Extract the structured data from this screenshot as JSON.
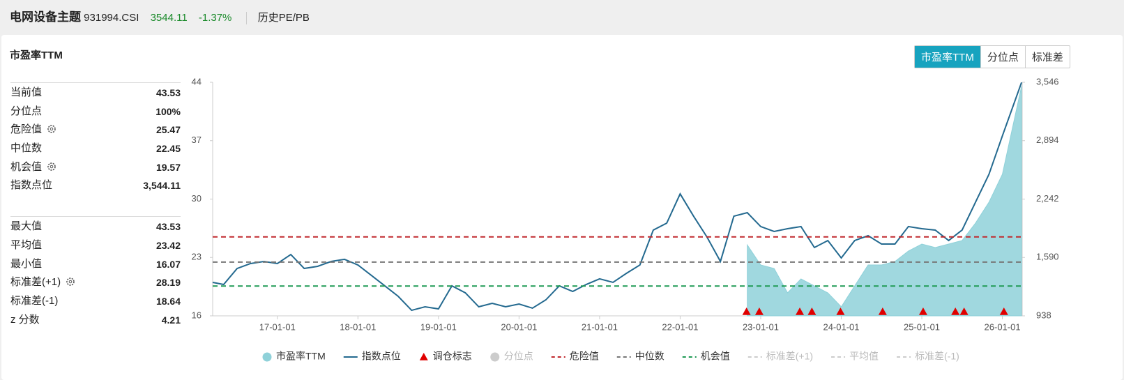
{
  "header": {
    "title": "电网设备主题",
    "code": "931994.CSI",
    "price": 3544.11,
    "change": "-1.37%",
    "link": "历史PE/PB"
  },
  "panel": {
    "title": "市盈率TTM",
    "tabs": [
      {
        "label": "市盈率TTM",
        "active": true
      },
      {
        "label": "分位点",
        "active": false
      },
      {
        "label": "标准差",
        "active": false
      }
    ]
  },
  "stats": [
    [
      {
        "label": "当前值",
        "value": 43.53
      },
      {
        "label": "分位点",
        "value": "100%"
      },
      {
        "label": "危险值",
        "value": 25.47,
        "gear": true
      },
      {
        "label": "中位数",
        "value": 22.45
      },
      {
        "label": "机会值",
        "value": 19.57,
        "gear": true
      },
      {
        "label": "指数点位",
        "value": "3,544.11"
      }
    ],
    [
      {
        "label": "最大值",
        "value": 43.53
      },
      {
        "label": "平均值",
        "value": 23.42
      },
      {
        "label": "最小值",
        "value": 16.07
      },
      {
        "label": "标准差(+1)",
        "value": 28.19,
        "gear": true
      },
      {
        "label": "标准差(-1)",
        "value": 18.64
      },
      {
        "label": "z 分数",
        "value": 4.21
      }
    ]
  ],
  "chart_data": {
    "type": "line",
    "x": [
      "16-03-12",
      "16-05-01",
      "16-07-01",
      "16-09-01",
      "16-11-01",
      "17-01-01",
      "17-03-01",
      "17-05-01",
      "17-07-01",
      "17-09-01",
      "17-11-01",
      "18-01-01",
      "18-03-01",
      "18-05-01",
      "18-07-01",
      "18-09-01",
      "18-11-01",
      "19-01-01",
      "19-03-01",
      "19-05-01",
      "19-07-01",
      "19-09-01",
      "19-11-01",
      "20-01-01",
      "20-03-01",
      "20-05-01",
      "20-07-01",
      "20-09-01",
      "20-11-01",
      "21-01-01",
      "21-03-01",
      "21-05-01",
      "21-07-01",
      "21-09-01",
      "21-11-01",
      "22-01-01",
      "22-03-01",
      "22-05-01",
      "22-07-01",
      "22-09-01",
      "22-11-01",
      "23-01-01",
      "23-03-01",
      "23-05-01",
      "23-07-01",
      "23-09-01",
      "23-11-01",
      "24-01-01",
      "24-03-01",
      "24-05-01",
      "24-07-01",
      "24-09-01",
      "24-11-01",
      "25-01-01",
      "25-03-01",
      "25-05-01",
      "25-07-01",
      "25-09-01",
      "25-11-01",
      "26-01-01",
      "26-03-27"
    ],
    "series": [
      {
        "name": "市盈率TTM",
        "kind": "area",
        "color": "#8fd1d9",
        "values": [
          null,
          null,
          null,
          null,
          null,
          null,
          null,
          null,
          null,
          null,
          null,
          null,
          null,
          null,
          null,
          null,
          null,
          null,
          null,
          null,
          null,
          null,
          null,
          null,
          null,
          null,
          null,
          null,
          null,
          null,
          null,
          null,
          null,
          null,
          null,
          null,
          null,
          null,
          null,
          null,
          24.5,
          22.1,
          21.68,
          18.76,
          20.43,
          19.59,
          18.76,
          17.09,
          19.59,
          22.1,
          22.1,
          22.52,
          23.77,
          24.61,
          24.19,
          24.61,
          25.03,
          27.12,
          29.62,
          32.97,
          43.53
        ]
      },
      {
        "name": "指数点位",
        "kind": "line",
        "axis": "y2",
        "color": "#23698f",
        "values": [
          1312,
          1288,
          1467,
          1522,
          1545,
          1522,
          1623,
          1467,
          1491,
          1545,
          1569,
          1506,
          1390,
          1273,
          1156,
          1000,
          1039,
          1016,
          1273,
          1195,
          1039,
          1078,
          1039,
          1070,
          1024,
          1117,
          1273,
          1210,
          1288,
          1351,
          1312,
          1413,
          1506,
          1896,
          1973,
          2300,
          2051,
          1818,
          1545,
          2051,
          2090,
          1935,
          1880,
          1911,
          1935,
          1701,
          1779,
          1584,
          1779,
          1833,
          1740,
          1740,
          1935,
          1911,
          1896,
          1779,
          1896,
          2207,
          2518,
          2947,
          3544.11
        ]
      }
    ],
    "markers": {
      "name": "调仓标志",
      "color": "#e00000",
      "x": [
        "22-10-28",
        "22-12-25",
        "23-06-26",
        "23-08-20",
        "23-12-28",
        "24-07-06",
        "25-01-07",
        "25-06-01",
        "25-07-10",
        "26-01-08"
      ]
    },
    "reference_lines": [
      {
        "name": "分位点",
        "visible": false,
        "color": "#cccccc"
      },
      {
        "name": "危险值",
        "visible": true,
        "value": 25.47,
        "color": "#c0282d"
      },
      {
        "name": "中位数",
        "visible": true,
        "value": 22.45,
        "color": "#777777"
      },
      {
        "name": "机会值",
        "visible": true,
        "value": 19.57,
        "color": "#1f9a55"
      },
      {
        "name": "标准差(+1)",
        "visible": false,
        "color": "#cccccc"
      },
      {
        "name": "平均值",
        "visible": false,
        "color": "#cccccc"
      },
      {
        "name": "标准差(-1)",
        "visible": false,
        "color": "#cccccc"
      }
    ],
    "xlim": [
      "16-03-12",
      "26-03-30"
    ],
    "xticks": [
      "17-01-01",
      "18-01-01",
      "19-01-01",
      "20-01-01",
      "21-01-01",
      "22-01-01",
      "23-01-01",
      "24-01-01",
      "25-01-01",
      "26-01-01"
    ],
    "ylim": [
      16,
      44
    ],
    "yticks": [
      16,
      23,
      30,
      37,
      44
    ],
    "y2lim": [
      938,
      3546
    ],
    "y2ticks": [
      938,
      {
        "value": 1590,
        "label": "1,590"
      },
      {
        "value": 2242,
        "label": "2,242"
      },
      {
        "value": 2894,
        "label": "2,894"
      },
      {
        "value": 3546,
        "label": "3,546"
      }
    ]
  }
}
